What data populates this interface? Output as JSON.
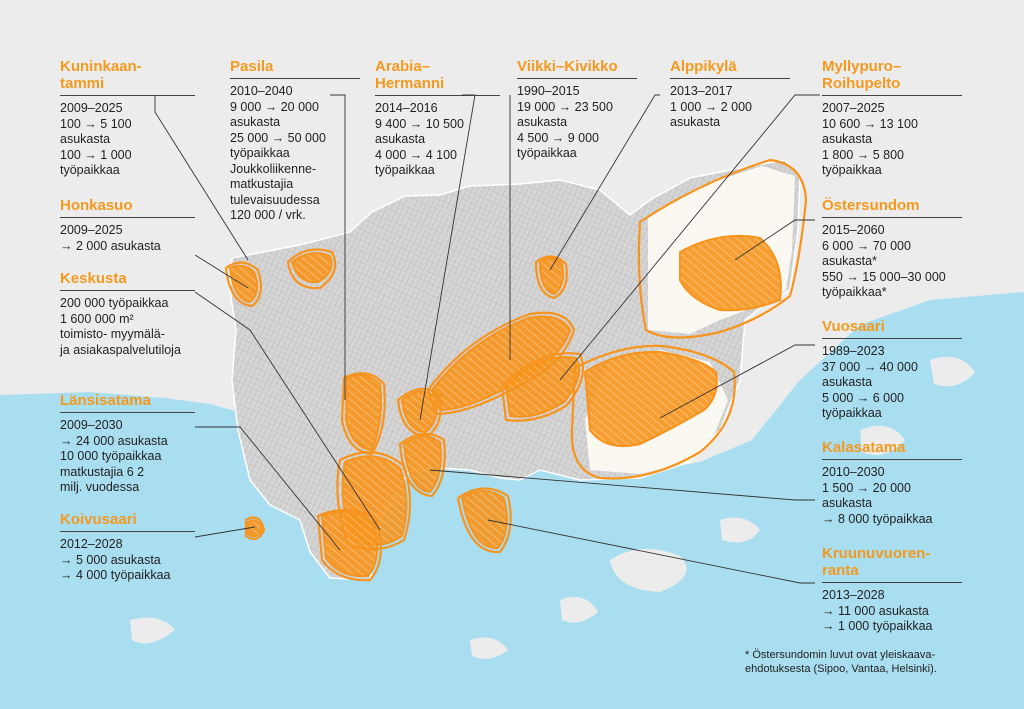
{
  "colors": {
    "land": "#ececec",
    "sea": "#a9def1",
    "city": "#d4d4d4",
    "cityLine": "#bdbdbd",
    "highlight": "#f7941d",
    "label": "#f39a1e",
    "text": "#222222"
  },
  "areas": [
    {
      "id": "kuninkaantammi",
      "name_lines": [
        "Kuninkaan-",
        "tammi"
      ],
      "lines": [
        "2009–2025",
        "100 → 5 100",
        "asukasta",
        "100 → 1 000",
        "työpaikkaa"
      ]
    },
    {
      "id": "honkasuo",
      "name_lines": [
        "Honkasuo"
      ],
      "lines": [
        "2009–2025",
        "→ 2 000 asukasta"
      ]
    },
    {
      "id": "keskusta",
      "name_lines": [
        "Keskusta"
      ],
      "lines": [
        "200 000 työpaikkaa",
        "1 600 000 m²",
        "toimisto- myymälä-",
        "ja asiakaspalvelutiloja"
      ]
    },
    {
      "id": "lansisatama",
      "name_lines": [
        "Länsisatama"
      ],
      "lines": [
        "2009–2030",
        "→ 24 000 asukasta",
        "10 000 työpaikkaa",
        "matkustajia 6 2",
        "milj. vuodessa"
      ]
    },
    {
      "id": "koivusaari",
      "name_lines": [
        "Koivusaari"
      ],
      "lines": [
        "2012–2028",
        "→ 5 000 asukasta",
        "→ 4 000 työpaikkaa"
      ]
    },
    {
      "id": "pasila",
      "name_lines": [
        "Pasila"
      ],
      "lines": [
        "2010–2040",
        "9 000 → 20 000",
        "asukasta",
        "25 000 → 50 000",
        "työpaikkaa",
        "Joukkoliikenne-",
        "matkustajia",
        "tulevaisuudessa",
        "120 000 / vrk."
      ]
    },
    {
      "id": "arabia",
      "name_lines": [
        "Arabia–",
        "Hermanni"
      ],
      "lines": [
        "2014–2016",
        "9 400 → 10 500",
        "asukasta",
        "4 000 → 4 100",
        "työpaikkaa"
      ]
    },
    {
      "id": "viikki",
      "name_lines": [
        "Viikki–Kivikko"
      ],
      "lines": [
        "1990–2015",
        "19 000 → 23 500",
        "asukasta",
        "4 500 → 9 000",
        "työpaikkaa"
      ]
    },
    {
      "id": "alppikyla",
      "name_lines": [
        "Alppikylä"
      ],
      "lines": [
        "2013–2017",
        "1 000 → 2 000",
        "asukasta"
      ]
    },
    {
      "id": "myllypuro",
      "name_lines": [
        "Myllypuro–",
        "Roihupelto"
      ],
      "lines": [
        "2007–2025",
        "10 600 → 13 100",
        "asukasta",
        "1 800 → 5 800",
        "työpaikkaa"
      ]
    },
    {
      "id": "ostersundom",
      "name_lines": [
        "Östersundom"
      ],
      "lines": [
        "2015–2060",
        "6 000 → 70 000",
        "asukasta*",
        "550 → 15 000–30 000",
        "työpaikkaa*"
      ]
    },
    {
      "id": "vuosaari",
      "name_lines": [
        "Vuosaari"
      ],
      "lines": [
        "1989–2023",
        "37 000 → 40 000",
        "asukasta",
        "5 000 → 6 000",
        "työpaikkaa"
      ]
    },
    {
      "id": "kalasatama",
      "name_lines": [
        "Kalasatama"
      ],
      "lines": [
        "2010–2030",
        "1 500 → 20 000",
        "asukasta",
        "→ 8 000 työpaikkaa"
      ]
    },
    {
      "id": "kruunuvuorenranta",
      "name_lines": [
        "Kruunuvuoren-",
        "ranta"
      ],
      "lines": [
        "2013–2028",
        "→ 11 000 asukasta",
        "→ 1 000 työpaikkaa"
      ]
    }
  ],
  "footnote": [
    "* Östersundomin luvut ovat yleiskaava-",
    "ehdotuksesta (Sipoo, Vantaa, Helsinki)."
  ]
}
